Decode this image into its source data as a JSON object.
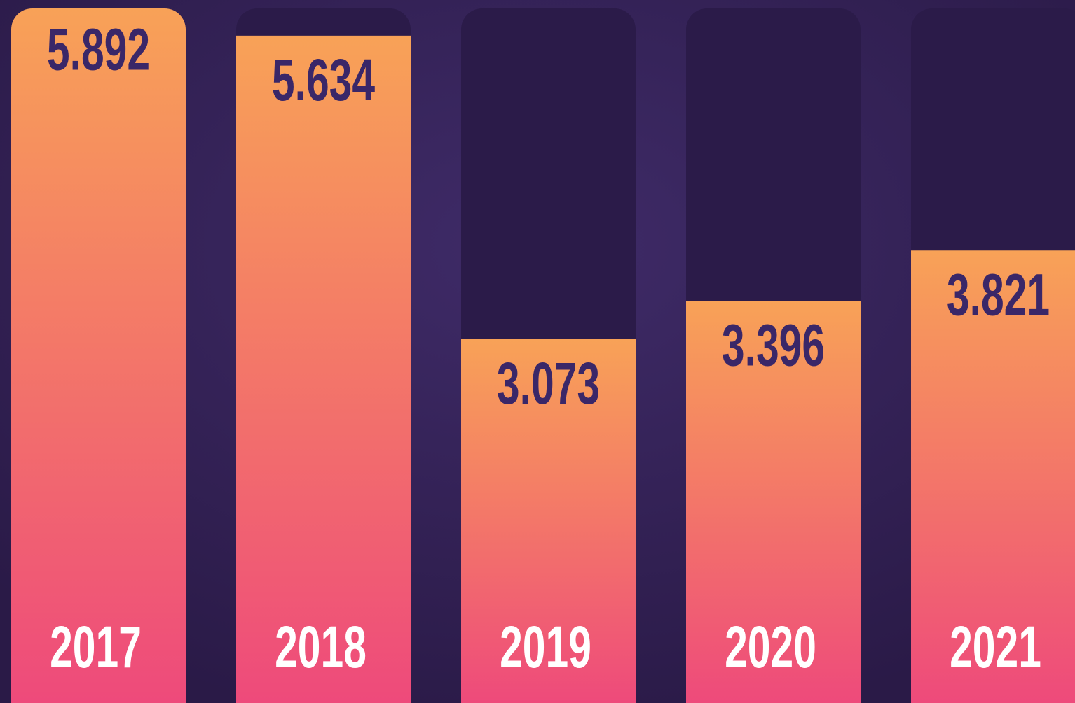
{
  "chart_data": {
    "type": "bar",
    "categories": [
      "2017",
      "2018",
      "2019",
      "2020",
      "2021"
    ],
    "values": [
      5.892,
      5.634,
      3.073,
      3.396,
      3.821
    ],
    "ylim": [
      0,
      6
    ],
    "color_top": "#f8a257",
    "color_bottom": "#ee4a7b"
  }
}
